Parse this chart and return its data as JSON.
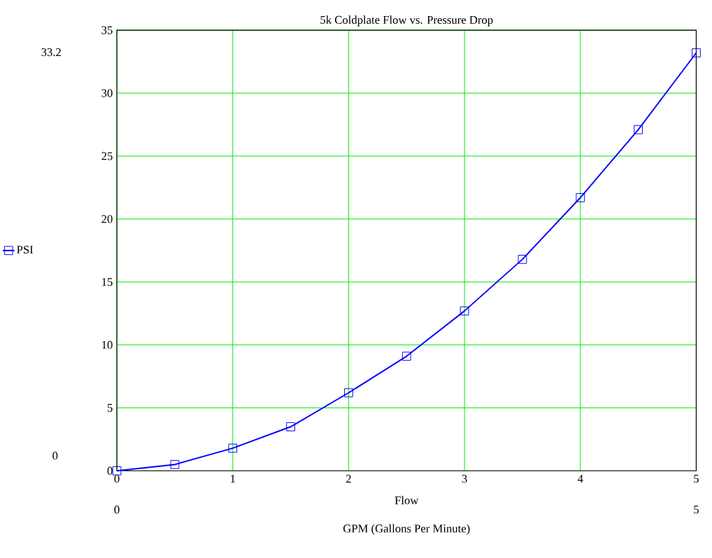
{
  "chart_data": {
    "type": "line",
    "title": "5k Coldplate Flow vs. Pressure Drop",
    "xlabel": "Flow",
    "x": [
      0,
      0.5,
      1,
      1.5,
      2,
      2.5,
      3,
      3.5,
      4,
      4.5,
      5
    ],
    "series": [
      {
        "name": "PSI",
        "color": "#0000ff",
        "values": [
          0,
          0.5,
          1.8,
          3.5,
          6.2,
          9.1,
          12.7,
          16.8,
          21.7,
          27.1,
          33.2
        ]
      }
    ],
    "xlim": [
      0,
      5
    ],
    "xticks": [
      0,
      1,
      2,
      3,
      4,
      5
    ],
    "ylim": [
      0,
      35
    ],
    "yticks": [
      0,
      5,
      10,
      15,
      20,
      25,
      30,
      35
    ],
    "grid": true,
    "legend": "left",
    "marker": "square",
    "line_style": "solid",
    "annotations": [
      "33.2",
      "0",
      "0",
      "5",
      "GPM (Gallons Per Minute)"
    ]
  }
}
